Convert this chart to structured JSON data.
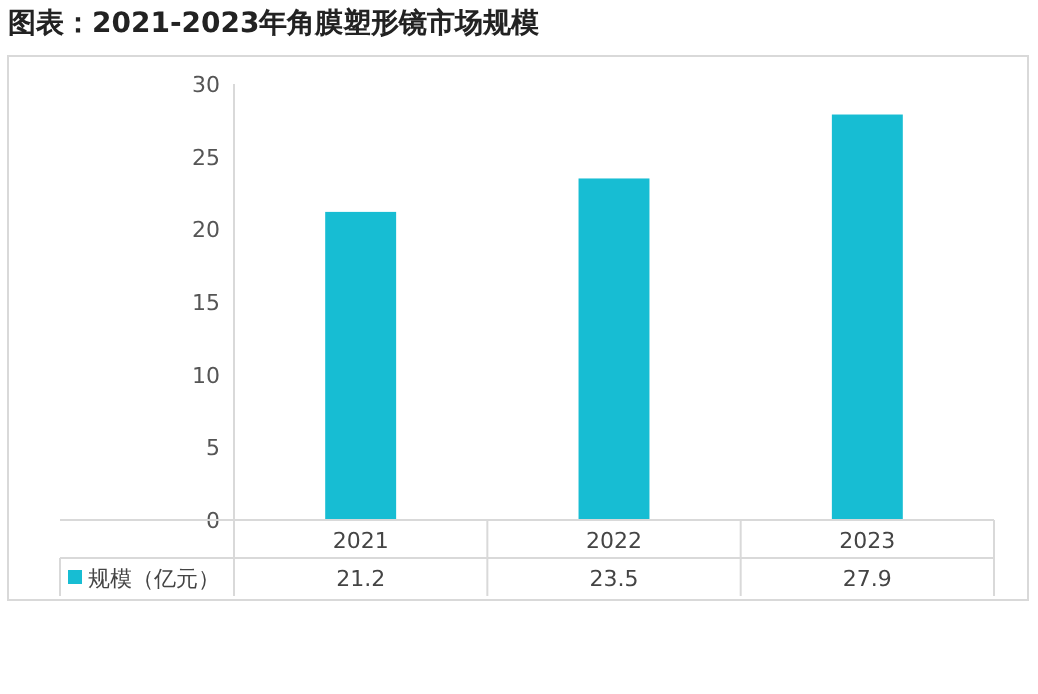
{
  "chart_data": {
    "type": "bar",
    "title": "图表：2021-2023年角膜塑形镜市场规模",
    "categories": [
      "2021",
      "2022",
      "2023"
    ],
    "series": [
      {
        "name": "规模（亿元）",
        "color": "#17bdd3",
        "values": [
          21.2,
          23.5,
          27.9
        ]
      }
    ],
    "ylim": [
      0,
      30
    ],
    "yticks": [
      0,
      5,
      10,
      15,
      20,
      25,
      30
    ],
    "data_labels": true,
    "legend": "bottom"
  }
}
